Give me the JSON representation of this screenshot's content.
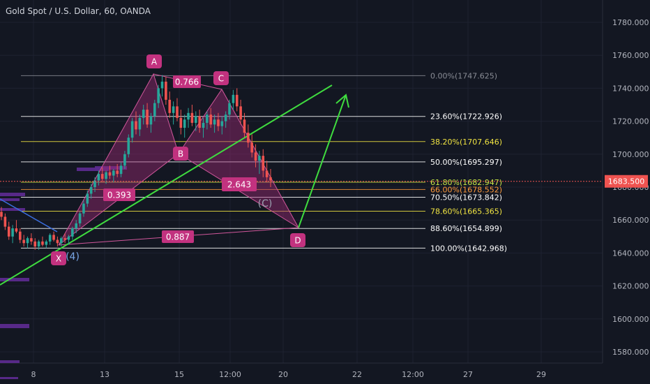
{
  "header": {
    "title": "Gold Spot / U.S. Dollar, 60, OANDA"
  },
  "colors": {
    "background": "#131722",
    "grid": "#1e2230",
    "axis_text": "#b2b5be",
    "candle_up": "#26a69a",
    "candle_down": "#ef5350",
    "pattern_fill": "#9c2a74",
    "pattern_label": "#c2327f",
    "trend_green": "#3fdc3f",
    "price_tag": "#ef5350",
    "volume_profile": "#5b2a8e"
  },
  "chart_data": {
    "type": "candlestick",
    "symbol": "Gold Spot / U.S. Dollar",
    "interval": "60",
    "source": "OANDA",
    "ylim": [
      1572,
      1792
    ],
    "yticks": [
      1580,
      1600,
      1620,
      1640,
      1660,
      1680,
      1700,
      1720,
      1740,
      1760,
      1780
    ],
    "ytick_labels": [
      "1580.000",
      "1600.000",
      "1620.000",
      "1640.000",
      "1660.000",
      "1680.000",
      "1700.000",
      "1720.000",
      "1740.000",
      "1760.000",
      "1780.000"
    ],
    "xtick_labels": [
      "8",
      "13",
      "15",
      "12:00",
      "20",
      "22",
      "12:00",
      "27",
      "29"
    ],
    "current_price": {
      "value": 1683.5,
      "label": "1683.500"
    },
    "fibonacci": [
      {
        "ratio": "0.00%",
        "price": 1747.625,
        "label": "0.00%(1747.625)",
        "color": "#8a8d96"
      },
      {
        "ratio": "23.60%",
        "price": 1722.926,
        "label": "23.60%(1722.926)",
        "color": "#ffffff"
      },
      {
        "ratio": "38.20%",
        "price": 1707.646,
        "label": "38.20%(1707.646)",
        "color": "#f0e442"
      },
      {
        "ratio": "50.00%",
        "price": 1695.297,
        "label": "50.00%(1695.297)",
        "color": "#ffffff"
      },
      {
        "ratio": "61.80%",
        "price": 1682.947,
        "label": "61.80%(1682.947)",
        "color": "#c8e645"
      },
      {
        "ratio": "66.00%",
        "price": 1678.552,
        "label": "66.00%(1678.552)",
        "color": "#ff9a3c"
      },
      {
        "ratio": "70.50%",
        "price": 1673.842,
        "label": "70.50%(1673.842)",
        "color": "#ffffff"
      },
      {
        "ratio": "78.60%",
        "price": 1665.365,
        "label": "78.60%(1665.365)",
        "color": "#f0e442"
      },
      {
        "ratio": "88.60%",
        "price": 1654.899,
        "label": "88.60%(1654.899)",
        "color": "#ffffff"
      },
      {
        "ratio": "100.00%",
        "price": 1642.968,
        "label": "100.00%(1642.968)",
        "color": "#ffffff"
      }
    ],
    "harmonic_pattern": {
      "points": [
        {
          "name": "X",
          "price": 1644
        },
        {
          "name": "A",
          "price": 1748
        },
        {
          "name": "B",
          "price": 1705
        },
        {
          "name": "C",
          "price": 1739
        },
        {
          "name": "D",
          "price": 1656
        }
      ],
      "ratios": [
        {
          "leg": "XAB",
          "value": "0.393"
        },
        {
          "leg": "ABC",
          "value": "0.766"
        },
        {
          "leg": "BCD",
          "value": "2.643"
        },
        {
          "leg": "XAD",
          "value": "0.887"
        }
      ]
    },
    "wave_labels": [
      "(4)",
      "(C)"
    ],
    "candles_ohlc": [
      [
        1665,
        1668,
        1660,
        1662
      ],
      [
        1662,
        1664,
        1654,
        1656
      ],
      [
        1656,
        1659,
        1648,
        1650
      ],
      [
        1650,
        1657,
        1646,
        1655
      ],
      [
        1655,
        1660,
        1652,
        1653
      ],
      [
        1653,
        1655,
        1646,
        1648
      ],
      [
        1648,
        1651,
        1644,
        1646
      ],
      [
        1646,
        1650,
        1643,
        1649
      ],
      [
        1649,
        1652,
        1645,
        1647
      ],
      [
        1647,
        1649,
        1642,
        1644
      ],
      [
        1644,
        1648,
        1642,
        1647
      ],
      [
        1647,
        1650,
        1644,
        1645
      ],
      [
        1645,
        1648,
        1643,
        1647
      ],
      [
        1647,
        1652,
        1645,
        1651
      ],
      [
        1651,
        1653,
        1647,
        1648
      ],
      [
        1648,
        1650,
        1644,
        1646
      ],
      [
        1646,
        1650,
        1644,
        1649
      ],
      [
        1649,
        1652,
        1646,
        1648
      ],
      [
        1648,
        1651,
        1645,
        1650
      ],
      [
        1650,
        1656,
        1648,
        1655
      ],
      [
        1655,
        1660,
        1652,
        1658
      ],
      [
        1658,
        1665,
        1656,
        1664
      ],
      [
        1664,
        1672,
        1662,
        1670
      ],
      [
        1670,
        1678,
        1668,
        1676
      ],
      [
        1676,
        1682,
        1673,
        1680
      ],
      [
        1680,
        1686,
        1677,
        1684
      ],
      [
        1684,
        1690,
        1681,
        1688
      ],
      [
        1688,
        1692,
        1683,
        1685
      ],
      [
        1685,
        1690,
        1682,
        1689
      ],
      [
        1689,
        1693,
        1685,
        1687
      ],
      [
        1687,
        1691,
        1683,
        1690
      ],
      [
        1690,
        1694,
        1686,
        1688
      ],
      [
        1688,
        1695,
        1686,
        1693
      ],
      [
        1693,
        1702,
        1691,
        1700
      ],
      [
        1700,
        1712,
        1698,
        1710
      ],
      [
        1710,
        1722,
        1707,
        1720
      ],
      [
        1720,
        1726,
        1712,
        1715
      ],
      [
        1715,
        1724,
        1711,
        1722
      ],
      [
        1722,
        1730,
        1718,
        1727
      ],
      [
        1727,
        1731,
        1716,
        1718
      ],
      [
        1718,
        1725,
        1713,
        1723
      ],
      [
        1723,
        1733,
        1720,
        1731
      ],
      [
        1731,
        1742,
        1728,
        1740
      ],
      [
        1740,
        1748,
        1735,
        1744
      ],
      [
        1744,
        1747,
        1730,
        1733
      ],
      [
        1733,
        1738,
        1722,
        1725
      ],
      [
        1725,
        1732,
        1718,
        1729
      ],
      [
        1729,
        1734,
        1720,
        1722
      ],
      [
        1722,
        1727,
        1712,
        1716
      ],
      [
        1716,
        1724,
        1710,
        1721
      ],
      [
        1721,
        1728,
        1716,
        1725
      ],
      [
        1725,
        1730,
        1717,
        1719
      ],
      [
        1719,
        1726,
        1714,
        1723
      ],
      [
        1723,
        1727,
        1713,
        1716
      ],
      [
        1716,
        1722,
        1710,
        1719
      ],
      [
        1719,
        1726,
        1715,
        1724
      ],
      [
        1724,
        1728,
        1716,
        1718
      ],
      [
        1718,
        1724,
        1713,
        1721
      ],
      [
        1721,
        1725,
        1714,
        1717
      ],
      [
        1717,
        1723,
        1712,
        1720
      ],
      [
        1720,
        1726,
        1716,
        1724
      ],
      [
        1724,
        1733,
        1721,
        1731
      ],
      [
        1731,
        1739,
        1727,
        1736
      ],
      [
        1736,
        1740,
        1726,
        1729
      ],
      [
        1729,
        1733,
        1718,
        1721
      ],
      [
        1721,
        1725,
        1710,
        1713
      ],
      [
        1713,
        1718,
        1704,
        1707
      ],
      [
        1707,
        1712,
        1698,
        1701
      ],
      [
        1701,
        1706,
        1692,
        1696
      ],
      [
        1696,
        1702,
        1688,
        1699
      ],
      [
        1699,
        1703,
        1686,
        1690
      ],
      [
        1690,
        1696,
        1683,
        1686
      ],
      [
        1686,
        1691,
        1680,
        1684
      ]
    ]
  }
}
